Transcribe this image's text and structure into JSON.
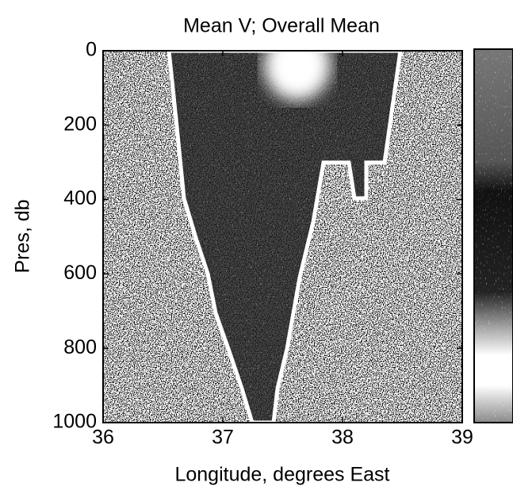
{
  "chart_data": {
    "type": "image",
    "title": "Mean V;  Overall Mean",
    "xlabel": "Longitude, degrees East",
    "ylabel": "Pres, db",
    "xlim": [
      36,
      39
    ],
    "xticks": [
      36,
      37,
      38,
      39
    ],
    "ylim": [
      0,
      1000
    ],
    "yticks": [
      0,
      200,
      400,
      600,
      800,
      1000
    ],
    "y_inverted": true,
    "colorbar": true
  }
}
